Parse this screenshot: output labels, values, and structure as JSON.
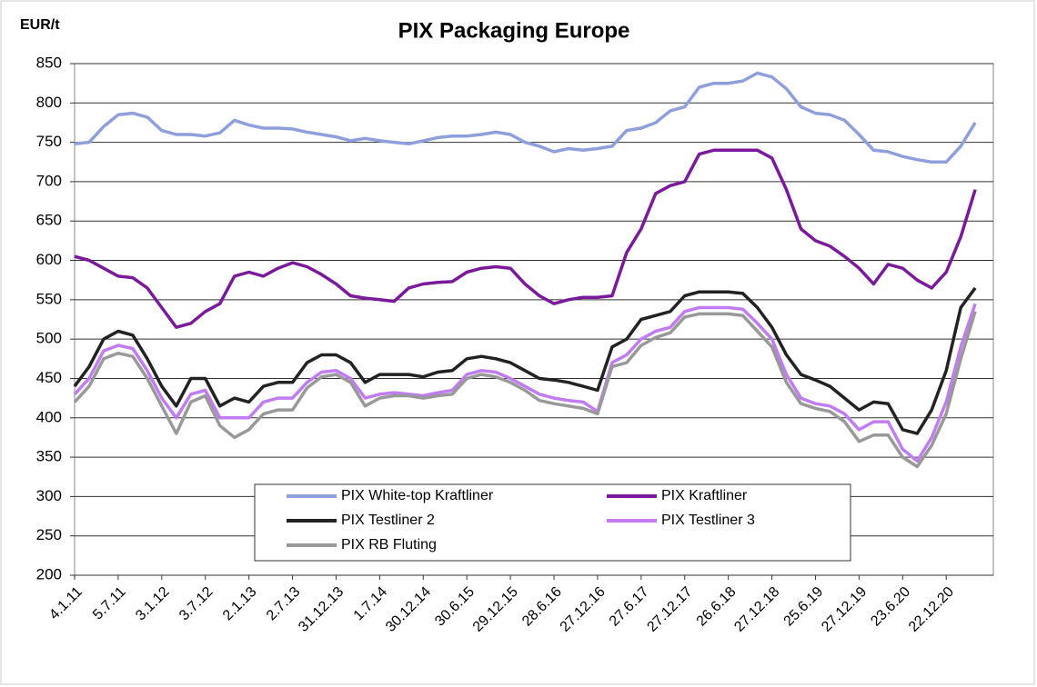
{
  "chart_data": {
    "type": "line",
    "title": "PIX Packaging Europe",
    "ylabel": "EUR/t",
    "categories": [
      "4.1.11",
      null,
      null,
      "5.7.11",
      null,
      null,
      "3.1.12",
      null,
      null,
      "3.7.12",
      null,
      null,
      "2.1.13",
      null,
      null,
      "2.7.13",
      null,
      null,
      "31.12.13",
      null,
      null,
      "1.7.14",
      null,
      null,
      "30.12.14",
      null,
      null,
      "30.6.15",
      null,
      null,
      "29.12.15",
      null,
      null,
      "28.6.16",
      null,
      null,
      "27.12.16",
      null,
      null,
      "27.6.17",
      null,
      null,
      "27.12.17",
      null,
      null,
      "26.6.18",
      null,
      null,
      "27.12.18",
      null,
      null,
      "25.6.19",
      null,
      null,
      "27.12.19",
      null,
      null,
      "23.6.20",
      null,
      null,
      "22.12.20",
      null,
      null
    ],
    "series": [
      {
        "name": "PIX White-top Kraftliner",
        "color": "#8f9fdc",
        "values": [
          748,
          750,
          770,
          785,
          787,
          782,
          765,
          760,
          760,
          758,
          762,
          778,
          772,
          768,
          768,
          767,
          763,
          760,
          757,
          752,
          755,
          752,
          750,
          748,
          752,
          756,
          758,
          758,
          760,
          763,
          760,
          750,
          745,
          738,
          742,
          740,
          742,
          745,
          765,
          768,
          775,
          790,
          795,
          820,
          825,
          825,
          828,
          838,
          833,
          818,
          795,
          787,
          785,
          778,
          760,
          740,
          738,
          732,
          728,
          725,
          725,
          745,
          775
        ]
      },
      {
        "name": "PIX Kraftliner",
        "color": "#7a1a9a",
        "values": [
          605,
          600,
          590,
          580,
          578,
          565,
          540,
          515,
          520,
          535,
          545,
          580,
          585,
          580,
          590,
          597,
          592,
          582,
          570,
          555,
          552,
          550,
          548,
          565,
          570,
          572,
          573,
          585,
          590,
          592,
          590,
          570,
          555,
          545,
          550,
          553,
          553,
          555,
          610,
          640,
          685,
          695,
          700,
          735,
          740,
          740,
          740,
          740,
          730,
          690,
          640,
          625,
          618,
          605,
          590,
          570,
          595,
          590,
          575,
          565,
          585,
          630,
          690
        ]
      },
      {
        "name": "PIX Testliner 2",
        "color": "#222222",
        "values": [
          440,
          465,
          500,
          510,
          505,
          475,
          440,
          415,
          450,
          450,
          415,
          425,
          420,
          440,
          445,
          445,
          470,
          480,
          480,
          470,
          445,
          455,
          455,
          455,
          452,
          458,
          460,
          475,
          478,
          475,
          470,
          460,
          450,
          448,
          445,
          440,
          435,
          490,
          500,
          525,
          530,
          535,
          555,
          560,
          560,
          560,
          558,
          540,
          515,
          480,
          455,
          448,
          440,
          425,
          410,
          420,
          418,
          385,
          380,
          410,
          460,
          540,
          565
        ]
      },
      {
        "name": "PIX Testliner 3",
        "color": "#c07cf0",
        "values": [
          430,
          450,
          485,
          492,
          488,
          460,
          425,
          400,
          430,
          435,
          400,
          400,
          400,
          420,
          425,
          425,
          445,
          458,
          460,
          450,
          425,
          430,
          432,
          430,
          428,
          432,
          435,
          455,
          460,
          458,
          450,
          440,
          430,
          425,
          422,
          420,
          408,
          470,
          480,
          500,
          510,
          515,
          535,
          540,
          540,
          540,
          538,
          520,
          500,
          455,
          425,
          418,
          415,
          405,
          385,
          395,
          395,
          360,
          345,
          375,
          420,
          490,
          545
        ]
      },
      {
        "name": "PIX RB Fluting",
        "color": "#999999",
        "values": [
          420,
          440,
          475,
          482,
          478,
          450,
          415,
          380,
          420,
          428,
          390,
          375,
          385,
          405,
          410,
          410,
          438,
          452,
          455,
          445,
          415,
          425,
          428,
          428,
          425,
          428,
          430,
          450,
          455,
          452,
          445,
          435,
          422,
          418,
          415,
          412,
          405,
          465,
          470,
          492,
          502,
          508,
          528,
          532,
          532,
          532,
          530,
          510,
          490,
          445,
          418,
          412,
          408,
          395,
          370,
          378,
          378,
          350,
          338,
          365,
          405,
          475,
          535
        ]
      }
    ],
    "ylim": [
      200,
      850
    ],
    "yticks": [
      200,
      250,
      300,
      350,
      400,
      450,
      500,
      550,
      600,
      650,
      700,
      750,
      800,
      850
    ],
    "grid": true,
    "legend": "lower center"
  }
}
